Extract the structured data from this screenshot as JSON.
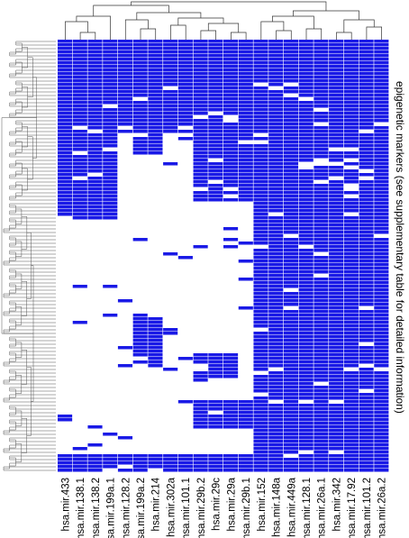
{
  "chart_data": {
    "type": "heatmap",
    "title": "",
    "ylabel": "epigenetic markers (see supplementary table for detailed information)",
    "columns": [
      "hsa.mir.433",
      "hsa.mir.138.1",
      "hsa.mir.138.2",
      "hsa.mir.199a.1",
      "hsa.mir.128.2",
      "hsa.mir.199a.2",
      "hsa.mir.214",
      "hsa.mir.302a",
      "hsa.mir.101.1",
      "hsa.mir.29b.2",
      "hsa.mir.29c",
      "hsa.mir.29a",
      "hsa.mir.29b.1",
      "hsa.mir.152",
      "hsa.mir.148a",
      "hsa.mir.449a",
      "hsa.mir.128.1",
      "hsa.mir.26a.1",
      "hsa.mir.342",
      "hsa.mir.17.92",
      "hsa.mir.101.2",
      "hsa.mir.26a.2"
    ],
    "colors": {
      "present": "#1a1ae6",
      "absent": "#ffffff"
    },
    "row_count": 120,
    "blocks": [
      {
        "cols": [
          0,
          21
        ],
        "rows": [
          0,
          12
        ],
        "value": 1
      },
      {
        "cols": [
          0,
          3
        ],
        "rows": [
          12,
          41
        ],
        "value": 1
      },
      {
        "cols": [
          4,
          4
        ],
        "rows": [
          12,
          26
        ],
        "value": 1
      },
      {
        "cols": [
          5,
          6
        ],
        "rows": [
          12,
          32
        ],
        "value": 1
      },
      {
        "cols": [
          7,
          8
        ],
        "rows": [
          12,
          26
        ],
        "value": 1
      },
      {
        "cols": [
          9,
          12
        ],
        "rows": [
          12,
          45
        ],
        "value": 1
      },
      {
        "cols": [
          13,
          21
        ],
        "rows": [
          12,
          45
        ],
        "value": 1
      },
      {
        "cols": [
          0,
          3
        ],
        "rows": [
          41,
          50
        ],
        "value": 1
      },
      {
        "cols": [
          13,
          21
        ],
        "rows": [
          45,
          110
        ],
        "value": 1
      },
      {
        "cols": [
          5,
          6
        ],
        "rows": [
          77,
          90
        ],
        "value": 1
      },
      {
        "cols": [
          9,
          11
        ],
        "rows": [
          87,
          94
        ],
        "value": 1
      },
      {
        "cols": [
          9,
          12
        ],
        "rows": [
          100,
          108
        ],
        "value": 1
      },
      {
        "cols": [
          13,
          21
        ],
        "rows": [
          110,
          120
        ],
        "value": 1
      },
      {
        "cols": [
          0,
          12
        ],
        "rows": [
          115,
          120
        ],
        "value": 1
      }
    ]
  }
}
